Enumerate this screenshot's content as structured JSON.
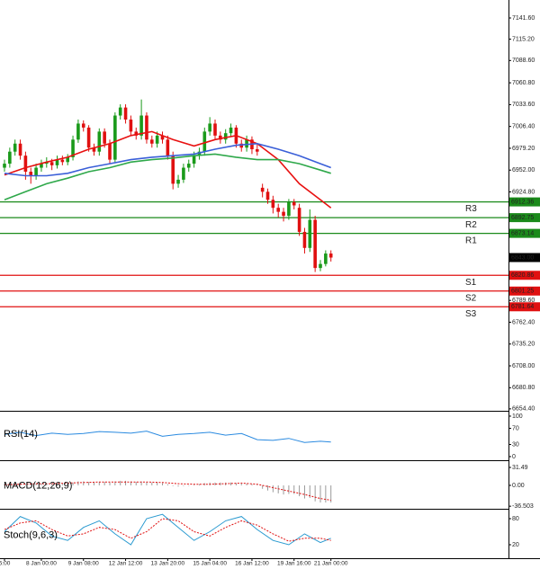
{
  "chart_data": [
    {
      "type": "candlestick",
      "categories": [
        "6:00",
        null,
        null,
        null,
        null,
        null,
        null,
        "8 Jan 00:00",
        null,
        null,
        null,
        null,
        null,
        null,
        null,
        "9 Jan 08:00",
        null,
        null,
        null,
        null,
        null,
        null,
        null,
        "12 Jan 12:00",
        null,
        null,
        null,
        null,
        null,
        null,
        null,
        "13 Jan 20:00",
        null,
        null,
        null,
        null,
        null,
        null,
        null,
        "15 Jan 04:00",
        null,
        null,
        null,
        null,
        null,
        null,
        null,
        "16 Jan 12:00",
        null,
        null,
        null,
        null,
        null,
        null,
        null,
        "19 Jan 16:00",
        null,
        null,
        null,
        null,
        null,
        null,
        "21 Jan 00:00"
      ],
      "open": [
        6955,
        6960,
        6975,
        6985,
        6970,
        6950,
        6945,
        6955,
        6960,
        6962,
        6958,
        6965,
        6962,
        6968,
        6990,
        7010,
        7005,
        6980,
        6975,
        7000,
        6985,
        6965,
        7020,
        7030,
        7015,
        7000,
        6995,
        7020,
        6990,
        6985,
        6995,
        6990,
        6970,
        6935,
        6940,
        6955,
        6960,
        6970,
        6975,
        7000,
        7010,
        6995,
        6990,
        6998,
        7005,
        6985,
        6980,
        6990,
        6978,
        6930,
        6925,
        6915,
        6905,
        6900,
        6895,
        6912,
        6905,
        6875,
        6855,
        6890,
        6830,
        6835,
        6848
      ],
      "high": [
        6965,
        6980,
        6990,
        6990,
        6975,
        6955,
        6960,
        6965,
        6968,
        6966,
        6970,
        6970,
        6972,
        6995,
        7015,
        7014,
        7008,
        6985,
        7004,
        7004,
        6990,
        7024,
        7034,
        7034,
        7020,
        7005,
        7040,
        7024,
        6995,
        7000,
        7000,
        6995,
        6975,
        6946,
        6960,
        6965,
        6975,
        6980,
        7005,
        7018,
        7015,
        7000,
        7003,
        7010,
        7008,
        6990,
        6995,
        6994,
        6984,
        6935,
        6929,
        6920,
        6910,
        6905,
        6916,
        6916,
        6910,
        6880,
        6903,
        6895,
        6840,
        6852,
        6852
      ],
      "low": [
        6950,
        6955,
        6970,
        6965,
        6940,
        6935,
        6940,
        6950,
        6955,
        6952,
        6954,
        6958,
        6958,
        6964,
        6986,
        7000,
        6975,
        6970,
        6970,
        6980,
        6960,
        6962,
        7015,
        7010,
        6995,
        6990,
        6990,
        6985,
        6980,
        6980,
        6985,
        6965,
        6928,
        6930,
        6936,
        6950,
        6955,
        6965,
        6970,
        6995,
        6990,
        6985,
        6985,
        6994,
        6980,
        6975,
        6975,
        6972,
        6970,
        6918,
        6910,
        6898,
        6893,
        6888,
        6890,
        6903,
        6870,
        6848,
        6850,
        6825,
        6826,
        6832,
        6838
      ],
      "close": [
        6960,
        6975,
        6985,
        6970,
        6950,
        6945,
        6955,
        6960,
        6962,
        6958,
        6965,
        6962,
        6968,
        6990,
        7010,
        7005,
        6980,
        6975,
        7000,
        6985,
        6965,
        7020,
        7030,
        7015,
        7000,
        6995,
        7020,
        6990,
        6985,
        6995,
        6990,
        6970,
        6935,
        6940,
        6955,
        6960,
        6970,
        6975,
        7000,
        7010,
        6995,
        6990,
        6998,
        7005,
        6985,
        6980,
        6990,
        6978,
        6975,
        6925,
        6915,
        6905,
        6900,
        6895,
        6912,
        6908,
        6875,
        6855,
        6890,
        6830,
        6835,
        6848,
        6843
      ],
      "up_color": "#1a9a1a",
      "down_color": "#e01010",
      "ylim": [
        6652,
        7164
      ],
      "yticks": [
        {
          "value": 7141.6,
          "label": "7141.60"
        },
        {
          "value": 7115.2,
          "label": "7115.20"
        },
        {
          "value": 7088.6,
          "label": "7088.60"
        },
        {
          "value": 7060.8,
          "label": "7060.80"
        },
        {
          "value": 7033.6,
          "label": "7033.60"
        },
        {
          "value": 7006.4,
          "label": "7006.40"
        },
        {
          "value": 6979.2,
          "label": "6979.20"
        },
        {
          "value": 6952,
          "label": "6952.00"
        },
        {
          "value": 6924.8,
          "label": "6924.80"
        },
        {
          "value": 6789.6,
          "label": "6789.60"
        },
        {
          "value": 6762.4,
          "label": "6762.40"
        },
        {
          "value": 6735.2,
          "label": "6735.20"
        },
        {
          "value": 6708,
          "label": "6708.00"
        },
        {
          "value": 6680.8,
          "label": "6680.80"
        },
        {
          "value": 6654.4,
          "label": "6654.40"
        }
      ],
      "lines": [
        {
          "color": "#e81010",
          "x": [
            0,
            4,
            8,
            12,
            16,
            20,
            24,
            28,
            32,
            36,
            40,
            44,
            48,
            52,
            56,
            60,
            62
          ],
          "values": [
            6946,
            6955,
            6962,
            6968,
            6978,
            6985,
            6995,
            7000,
            6990,
            6982,
            6990,
            6995,
            6985,
            6965,
            6935,
            6915,
            6905
          ]
        },
        {
          "color": "#3a5fd8",
          "x": [
            0,
            4,
            8,
            12,
            16,
            20,
            24,
            28,
            32,
            36,
            40,
            44,
            48,
            52,
            56,
            60,
            62
          ],
          "values": [
            6948,
            6945,
            6945,
            6948,
            6955,
            6960,
            6965,
            6968,
            6970,
            6972,
            6978,
            6983,
            6985,
            6978,
            6970,
            6960,
            6955
          ]
        },
        {
          "color": "#2ea84a",
          "x": [
            0,
            4,
            8,
            12,
            16,
            20,
            24,
            28,
            32,
            36,
            40,
            44,
            48,
            52,
            56,
            60,
            62
          ],
          "values": [
            6915,
            6925,
            6935,
            6942,
            6950,
            6955,
            6962,
            6965,
            6967,
            6970,
            6972,
            6968,
            6965,
            6965,
            6960,
            6952,
            6948
          ]
        }
      ],
      "levels": [
        {
          "label": "R3",
          "value": 6912.36,
          "color": "#1a8a1a"
        },
        {
          "label": "R2",
          "value": 6892.75,
          "color": "#1a8a1a"
        },
        {
          "label": "R1",
          "value": 6873.14,
          "color": "#1a8a1a"
        },
        {
          "label": "S1",
          "value": 6820.86,
          "color": "#e01010"
        },
        {
          "label": "S2",
          "value": 6801.25,
          "color": "#e01010"
        },
        {
          "label": "S3",
          "value": 6781.64,
          "color": "#e01010"
        }
      ],
      "last_price": {
        "value": 6843,
        "label": "6843.00"
      }
    },
    {
      "type": "line",
      "title": "RSI(14)",
      "ylim": [
        -9,
        111
      ],
      "yticks": [
        100,
        70,
        30,
        0
      ],
      "lines": [
        {
          "color": "#2a8ae0",
          "x": [
            0,
            3,
            6,
            9,
            12,
            15,
            18,
            21,
            24,
            27,
            30,
            33,
            36,
            39,
            42,
            45,
            48,
            51,
            54,
            57,
            60,
            62
          ],
          "values": [
            55,
            60,
            52,
            58,
            55,
            57,
            62,
            60,
            58,
            63,
            50,
            55,
            57,
            60,
            53,
            57,
            42,
            40,
            45,
            35,
            38,
            36
          ]
        }
      ]
    },
    {
      "type": "bar",
      "title": "MACD(12,26,9)",
      "ylim": [
        -41,
        42.5
      ],
      "yticks": [
        31.49,
        {
          "value": 0,
          "label": "0.00"
        },
        -36.503
      ],
      "color": "#9a9a9a",
      "values": [
        2,
        3,
        4,
        3,
        2,
        2,
        3,
        3,
        3,
        3,
        3,
        3,
        4,
        5,
        7,
        7,
        6,
        5,
        6,
        6,
        5,
        7,
        8,
        8,
        7,
        6,
        7,
        6,
        5,
        5,
        4,
        2,
        -1,
        -2,
        -1,
        0,
        1,
        2,
        4,
        5,
        5,
        5,
        5,
        5,
        4,
        3,
        3,
        2,
        1,
        -6,
        -9,
        -12,
        -14,
        -16,
        -15,
        -15,
        -19,
        -23,
        -22,
        -28,
        -30,
        -30,
        -30
      ],
      "lines": [
        {
          "color": "#e01010",
          "dash": true,
          "x": [
            0,
            3,
            6,
            9,
            12,
            15,
            18,
            21,
            24,
            27,
            30,
            33,
            36,
            39,
            42,
            45,
            48,
            51,
            54,
            57,
            60,
            62
          ],
          "values": [
            1,
            2,
            3,
            3,
            4,
            5,
            6,
            6,
            6,
            6,
            5,
            3,
            2,
            2,
            3,
            4,
            2,
            -4,
            -10,
            -16,
            -23,
            -26
          ]
        }
      ]
    },
    {
      "type": "line",
      "title": "Stoch(9,6,3)",
      "ylim": [
        -11,
        98.6
      ],
      "yticks": [
        80,
        20
      ],
      "lines": [
        {
          "color": "#2a9ad0",
          "x": [
            0,
            3,
            6,
            9,
            12,
            15,
            18,
            21,
            24,
            27,
            30,
            33,
            36,
            39,
            42,
            45,
            48,
            51,
            54,
            57,
            60,
            62
          ],
          "values": [
            50,
            85,
            70,
            40,
            30,
            60,
            75,
            45,
            20,
            80,
            90,
            60,
            30,
            50,
            75,
            85,
            55,
            30,
            20,
            45,
            25,
            35
          ]
        },
        {
          "color": "#e01010",
          "dash": true,
          "x": [
            0,
            3,
            6,
            9,
            12,
            15,
            18,
            21,
            24,
            27,
            30,
            33,
            36,
            39,
            42,
            45,
            48,
            51,
            54,
            57,
            60,
            62
          ],
          "values": [
            55,
            70,
            75,
            55,
            40,
            45,
            60,
            55,
            35,
            50,
            80,
            75,
            50,
            40,
            60,
            75,
            65,
            45,
            28,
            35,
            35,
            30
          ]
        }
      ]
    }
  ]
}
